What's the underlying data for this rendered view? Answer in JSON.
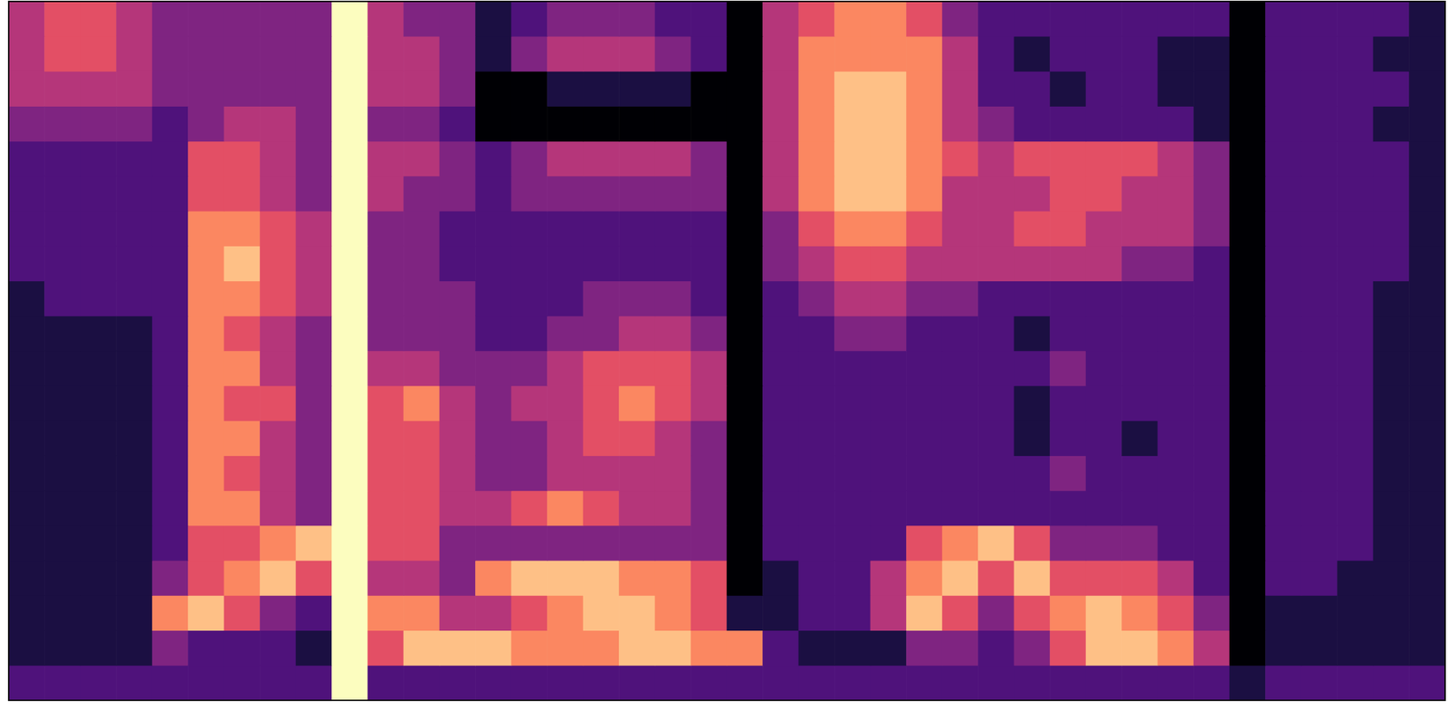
{
  "chart_data": {
    "type": "heatmap",
    "tick_labels": false,
    "grid": false,
    "cells": [
      [
        5,
        6,
        6,
        5,
        4,
        4,
        4,
        4,
        4,
        9,
        5,
        4,
        4,
        2,
        3,
        4,
        4,
        4,
        3,
        3,
        1,
        5,
        6,
        7,
        7,
        6,
        4,
        3,
        3,
        3,
        3,
        3,
        3,
        3,
        1,
        3,
        3,
        3,
        3,
        2
      ],
      [
        5,
        6,
        6,
        5,
        4,
        4,
        4,
        4,
        4,
        9,
        5,
        5,
        4,
        2,
        4,
        5,
        5,
        5,
        4,
        3,
        1,
        5,
        7,
        7,
        7,
        7,
        5,
        3,
        2,
        3,
        3,
        3,
        2,
        2,
        1,
        3,
        3,
        3,
        2,
        2
      ],
      [
        5,
        5,
        5,
        5,
        4,
        4,
        4,
        4,
        4,
        9,
        5,
        5,
        4,
        1,
        1,
        2,
        2,
        2,
        2,
        1,
        1,
        5,
        7,
        8,
        8,
        7,
        5,
        3,
        3,
        2,
        3,
        3,
        2,
        2,
        1,
        3,
        3,
        3,
        3,
        2
      ],
      [
        4,
        4,
        4,
        4,
        3,
        4,
        5,
        5,
        4,
        9,
        4,
        4,
        3,
        1,
        1,
        1,
        1,
        1,
        1,
        1,
        1,
        5,
        7,
        8,
        8,
        7,
        5,
        4,
        3,
        3,
        3,
        3,
        3,
        2,
        1,
        3,
        3,
        3,
        2,
        2
      ],
      [
        3,
        3,
        3,
        3,
        3,
        6,
        6,
        5,
        4,
        9,
        5,
        5,
        4,
        3,
        4,
        5,
        5,
        5,
        5,
        4,
        1,
        5,
        7,
        8,
        8,
        7,
        6,
        5,
        6,
        6,
        6,
        6,
        5,
        4,
        1,
        3,
        3,
        3,
        3,
        2
      ],
      [
        3,
        3,
        3,
        3,
        3,
        6,
        6,
        5,
        4,
        9,
        5,
        4,
        4,
        3,
        4,
        4,
        4,
        4,
        4,
        4,
        1,
        5,
        7,
        8,
        8,
        7,
        5,
        5,
        5,
        6,
        6,
        5,
        5,
        4,
        1,
        3,
        3,
        3,
        3,
        2
      ],
      [
        3,
        3,
        3,
        3,
        3,
        7,
        7,
        6,
        5,
        9,
        4,
        4,
        3,
        3,
        3,
        3,
        3,
        3,
        3,
        3,
        1,
        4,
        6,
        7,
        7,
        6,
        5,
        5,
        6,
        6,
        5,
        5,
        5,
        4,
        1,
        3,
        3,
        3,
        3,
        2
      ],
      [
        3,
        3,
        3,
        3,
        3,
        7,
        8,
        6,
        5,
        9,
        4,
        4,
        3,
        3,
        3,
        3,
        3,
        3,
        3,
        3,
        1,
        4,
        5,
        6,
        6,
        5,
        5,
        5,
        5,
        5,
        5,
        4,
        4,
        3,
        1,
        3,
        3,
        3,
        3,
        2
      ],
      [
        2,
        3,
        3,
        3,
        3,
        7,
        7,
        6,
        5,
        9,
        4,
        4,
        4,
        3,
        3,
        3,
        4,
        4,
        4,
        3,
        1,
        3,
        4,
        5,
        5,
        4,
        4,
        3,
        3,
        3,
        3,
        3,
        3,
        3,
        1,
        3,
        3,
        3,
        2,
        2
      ],
      [
        2,
        2,
        2,
        2,
        3,
        7,
        6,
        5,
        4,
        9,
        4,
        4,
        4,
        3,
        3,
        4,
        4,
        5,
        5,
        4,
        1,
        3,
        3,
        4,
        4,
        3,
        3,
        3,
        2,
        3,
        3,
        3,
        3,
        3,
        1,
        3,
        3,
        3,
        2,
        2
      ],
      [
        2,
        2,
        2,
        2,
        3,
        7,
        7,
        5,
        4,
        9,
        5,
        5,
        4,
        4,
        4,
        5,
        6,
        6,
        6,
        5,
        1,
        3,
        3,
        3,
        3,
        3,
        3,
        3,
        3,
        4,
        3,
        3,
        3,
        3,
        1,
        3,
        3,
        3,
        2,
        2
      ],
      [
        2,
        2,
        2,
        2,
        3,
        7,
        6,
        6,
        4,
        9,
        6,
        7,
        5,
        4,
        5,
        5,
        6,
        7,
        6,
        5,
        1,
        3,
        3,
        3,
        3,
        3,
        3,
        3,
        2,
        3,
        3,
        3,
        3,
        3,
        1,
        3,
        3,
        3,
        2,
        2
      ],
      [
        2,
        2,
        2,
        2,
        3,
        7,
        7,
        5,
        4,
        9,
        6,
        6,
        5,
        4,
        4,
        5,
        6,
        6,
        5,
        4,
        1,
        3,
        3,
        3,
        3,
        3,
        3,
        3,
        2,
        3,
        3,
        2,
        3,
        3,
        1,
        3,
        3,
        3,
        2,
        2
      ],
      [
        2,
        2,
        2,
        2,
        3,
        7,
        6,
        5,
        4,
        9,
        6,
        6,
        5,
        4,
        4,
        5,
        5,
        5,
        5,
        4,
        1,
        3,
        3,
        3,
        3,
        3,
        3,
        3,
        3,
        4,
        3,
        3,
        3,
        3,
        1,
        3,
        3,
        3,
        2,
        2
      ],
      [
        2,
        2,
        2,
        2,
        3,
        7,
        7,
        5,
        4,
        9,
        6,
        6,
        5,
        5,
        6,
        7,
        6,
        5,
        5,
        4,
        1,
        3,
        3,
        3,
        3,
        3,
        3,
        3,
        3,
        3,
        3,
        3,
        3,
        3,
        1,
        3,
        3,
        3,
        2,
        2
      ],
      [
        2,
        2,
        2,
        2,
        3,
        6,
        6,
        7,
        8,
        9,
        6,
        6,
        4,
        4,
        4,
        4,
        4,
        4,
        4,
        4,
        1,
        3,
        3,
        3,
        3,
        6,
        7,
        8,
        6,
        4,
        4,
        4,
        3,
        3,
        1,
        3,
        3,
        3,
        2,
        2
      ],
      [
        2,
        2,
        2,
        2,
        4,
        6,
        7,
        8,
        6,
        9,
        5,
        5,
        4,
        7,
        8,
        8,
        8,
        7,
        7,
        6,
        1,
        2,
        3,
        3,
        5,
        7,
        8,
        6,
        8,
        6,
        6,
        6,
        5,
        3,
        1,
        3,
        3,
        2,
        2,
        2
      ],
      [
        2,
        2,
        2,
        2,
        7,
        8,
        6,
        4,
        3,
        9,
        7,
        7,
        5,
        5,
        6,
        7,
        8,
        8,
        7,
        6,
        2,
        2,
        3,
        3,
        5,
        8,
        6,
        4,
        6,
        7,
        8,
        7,
        6,
        4,
        1,
        2,
        2,
        2,
        2,
        2
      ],
      [
        2,
        2,
        2,
        2,
        4,
        3,
        3,
        3,
        2,
        9,
        6,
        8,
        8,
        8,
        7,
        7,
        7,
        8,
        8,
        7,
        7,
        3,
        2,
        2,
        2,
        4,
        4,
        3,
        4,
        6,
        8,
        8,
        7,
        5,
        1,
        2,
        2,
        2,
        2,
        2
      ],
      [
        3,
        3,
        3,
        3,
        3,
        3,
        3,
        3,
        3,
        9,
        3,
        3,
        3,
        3,
        3,
        3,
        3,
        3,
        3,
        3,
        3,
        3,
        3,
        3,
        3,
        3,
        3,
        3,
        3,
        3,
        3,
        3,
        3,
        3,
        2,
        3,
        3,
        3,
        3,
        3
      ]
    ]
  }
}
